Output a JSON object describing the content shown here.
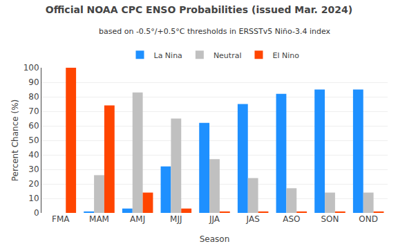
{
  "chart_data": {
    "type": "bar",
    "title": "Official NOAA CPC ENSO Probabilities (issued Mar. 2024)",
    "subtitle": "based on -0.5°/+0.5°C thresholds in ERSSTv5 Niño-3.4 index",
    "xlabel": "Season",
    "ylabel": "Percent Chance (%)",
    "categories": [
      "FMA",
      "MAM",
      "AMJ",
      "MJJ",
      "JJA",
      "JAS",
      "ASO",
      "SON",
      "OND"
    ],
    "series": [
      {
        "name": "La Nina",
        "color": "#1E90FF",
        "values": [
          0,
          1,
          3,
          32,
          62,
          75,
          82,
          85,
          85
        ]
      },
      {
        "name": "Neutral",
        "color": "#C0C0C0",
        "values": [
          0,
          26,
          83,
          65,
          37,
          24,
          17,
          14,
          14
        ]
      },
      {
        "name": "El Nino",
        "color": "#FF4500",
        "values": [
          100,
          74,
          14,
          3,
          1,
          1,
          1,
          1,
          1
        ]
      }
    ],
    "ylim": [
      0,
      100
    ],
    "yticks": [
      0,
      10,
      20,
      30,
      40,
      50,
      60,
      70,
      80,
      90,
      100
    ],
    "grid": true,
    "legend": "top"
  }
}
